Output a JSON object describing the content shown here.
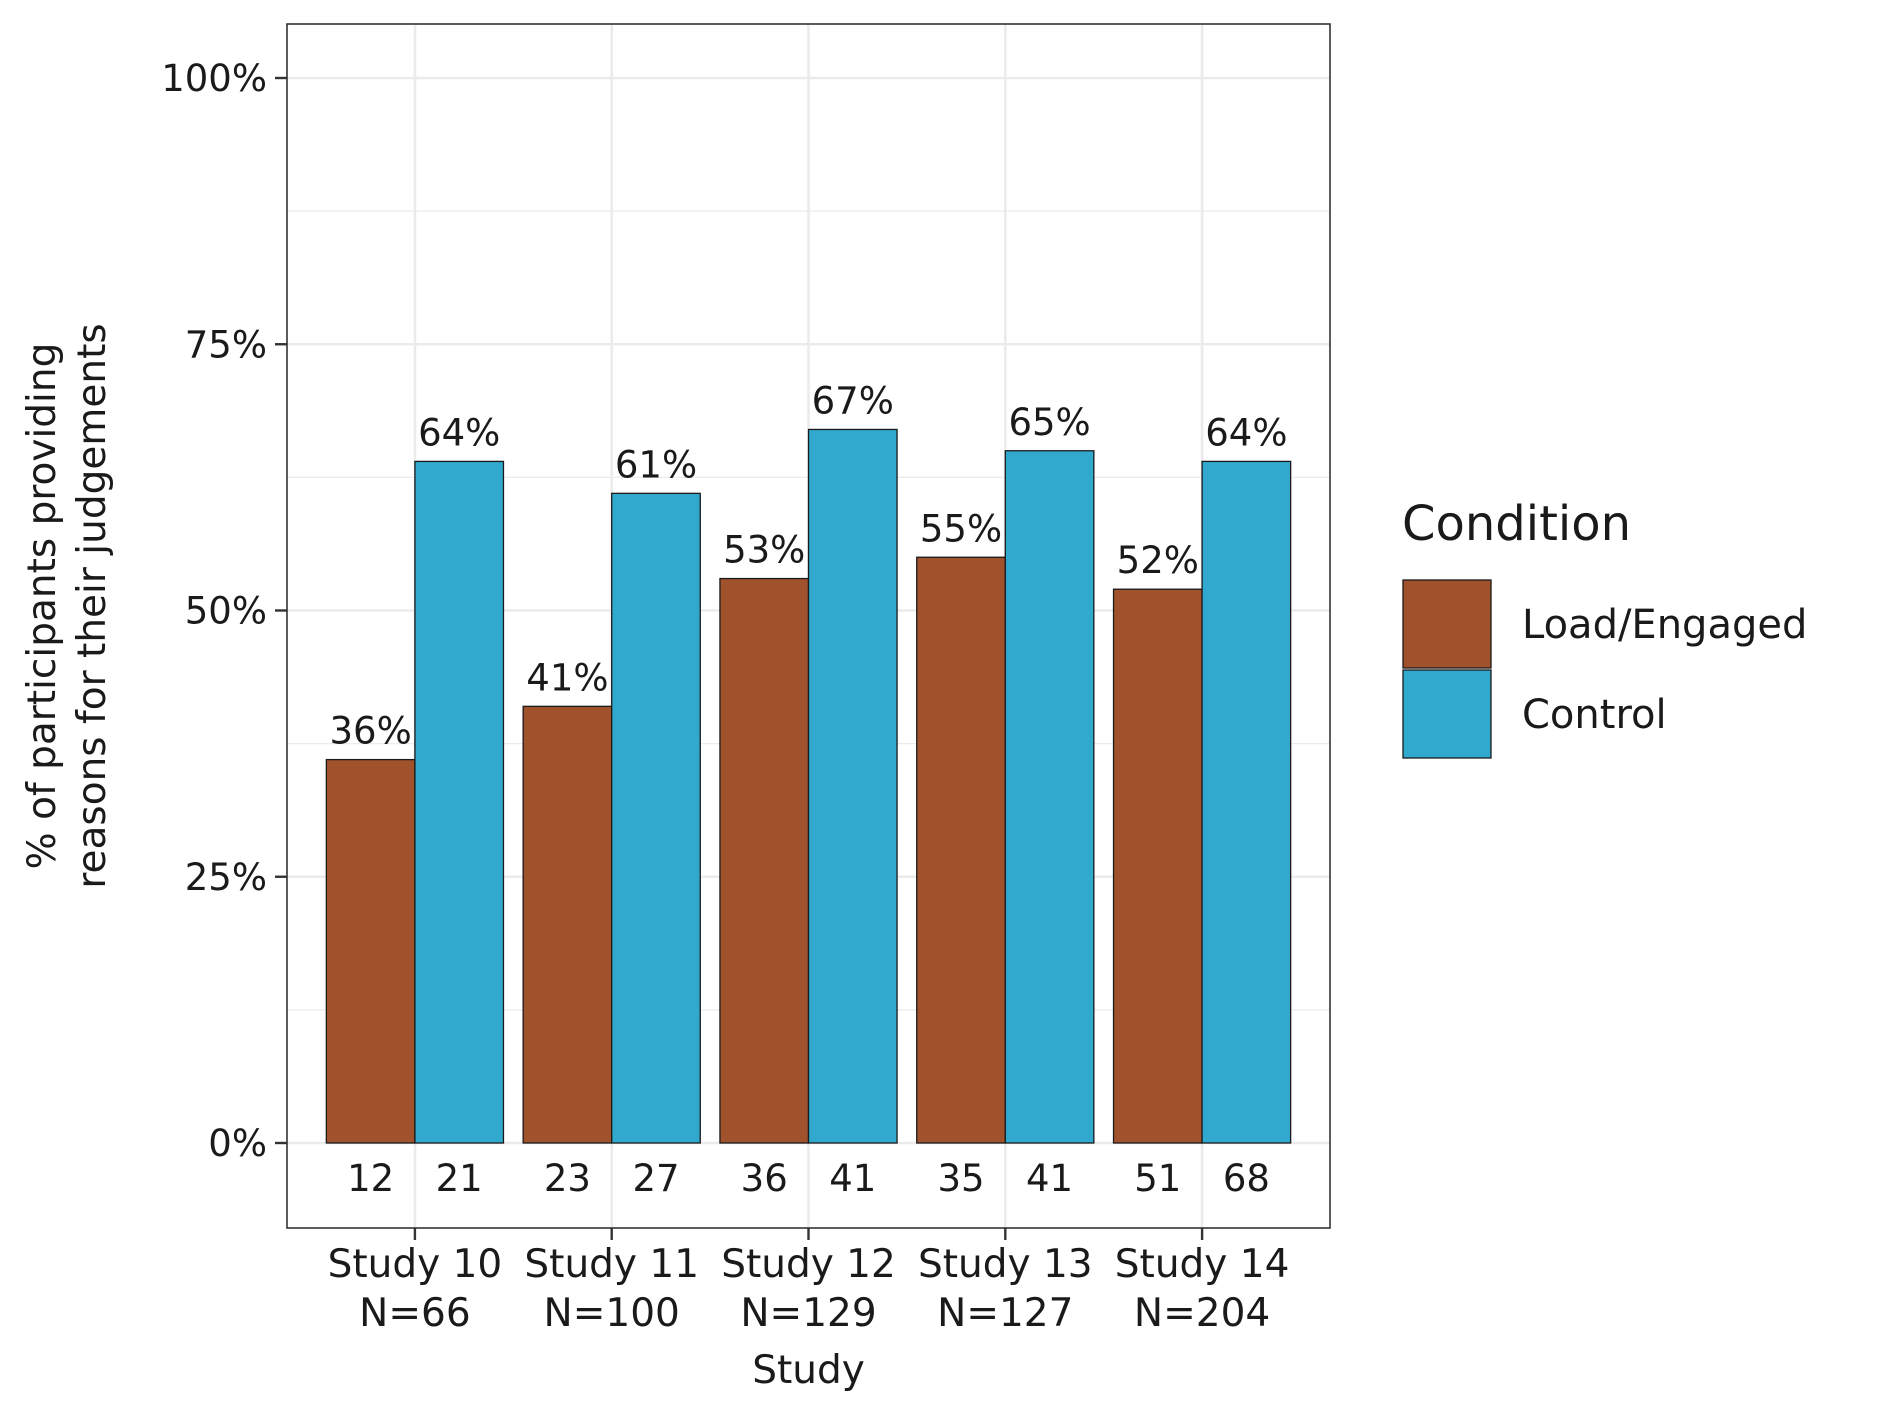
{
  "chart_data": {
    "type": "bar",
    "categories": [
      "Study 10",
      "Study 11",
      "Study 12",
      "Study 13",
      "Study 14"
    ],
    "category_n": [
      "N=66",
      "N=100",
      "N=129",
      "N=127",
      "N=204"
    ],
    "series": [
      {
        "name": "Load/Engaged",
        "color": "#a0522d",
        "values": [
          36,
          41,
          53,
          55,
          52
        ],
        "labels": [
          "36%",
          "41%",
          "53%",
          "55%",
          "52%"
        ],
        "counts": [
          "12",
          "23",
          "36",
          "35",
          "51"
        ]
      },
      {
        "name": "Control",
        "color": "#31a9cf",
        "values": [
          64,
          61,
          67,
          65,
          64
        ],
        "labels": [
          "64%",
          "61%",
          "67%",
          "65%",
          "64%"
        ],
        "counts": [
          "21",
          "27",
          "41",
          "41",
          "68"
        ]
      }
    ],
    "xlabel": "Study",
    "ylabel_lines": [
      "% of participants providing",
      "reasons for their judgements"
    ],
    "yticks": [
      0,
      25,
      50,
      75,
      100
    ],
    "ytick_labels": [
      "0%",
      "25%",
      "50%",
      "75%",
      "100%"
    ],
    "ylim": [
      -8,
      105
    ],
    "grid": true,
    "legend": {
      "title": "Condition",
      "position": "right"
    }
  }
}
